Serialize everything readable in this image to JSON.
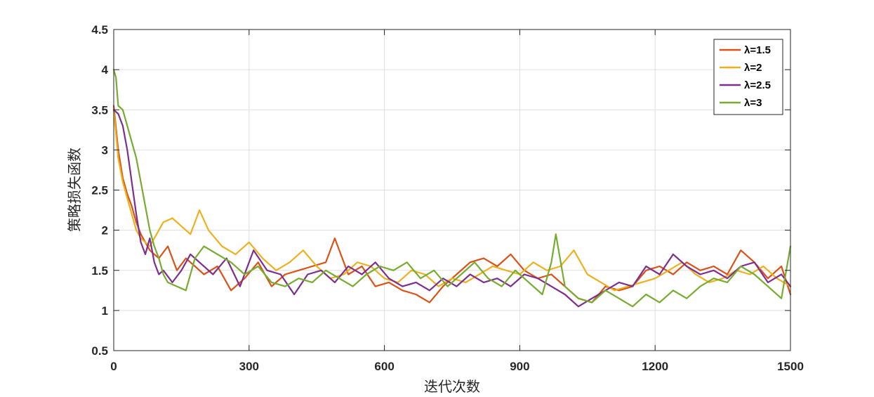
{
  "chart_data": {
    "type": "line",
    "title": "",
    "xlabel": "迭代次数",
    "ylabel": "策略损失函数",
    "xlim": [
      0,
      1500
    ],
    "ylim": [
      0.5,
      4.5
    ],
    "xticks": [
      0,
      300,
      600,
      900,
      1200,
      1500
    ],
    "yticks": [
      0.5,
      1,
      1.5,
      2,
      2.5,
      3,
      3.5,
      4,
      4.5
    ],
    "xtick_labels": [
      "0",
      "300",
      "600",
      "900",
      "1200",
      "1500"
    ],
    "ytick_labels": [
      "0.5",
      "1",
      "1.5",
      "2",
      "2.5",
      "3",
      "3.5",
      "4",
      "4.5"
    ],
    "grid": true,
    "legend_position": "top-right",
    "series": [
      {
        "name": "λ=1.5",
        "color": "#D95319",
        "x": [
          0,
          10,
          20,
          30,
          40,
          50,
          60,
          70,
          80,
          90,
          100,
          120,
          140,
          160,
          180,
          200,
          230,
          260,
          290,
          320,
          350,
          380,
          410,
          440,
          470,
          490,
          520,
          550,
          580,
          610,
          640,
          670,
          700,
          730,
          760,
          790,
          820,
          850,
          880,
          910,
          940,
          970,
          1000,
          1030,
          1060,
          1090,
          1120,
          1150,
          1180,
          1210,
          1240,
          1270,
          1300,
          1330,
          1360,
          1390,
          1420,
          1450,
          1480,
          1500
        ],
        "y": [
          3.55,
          3.0,
          2.65,
          2.45,
          2.3,
          2.1,
          1.95,
          1.85,
          1.75,
          1.7,
          1.65,
          1.8,
          1.5,
          1.65,
          1.55,
          1.45,
          1.55,
          1.25,
          1.4,
          1.6,
          1.3,
          1.45,
          1.5,
          1.55,
          1.6,
          1.9,
          1.45,
          1.55,
          1.3,
          1.35,
          1.25,
          1.2,
          1.1,
          1.3,
          1.45,
          1.6,
          1.65,
          1.55,
          1.7,
          1.5,
          1.4,
          1.45,
          1.3,
          1.15,
          1.1,
          1.3,
          1.25,
          1.3,
          1.5,
          1.55,
          1.45,
          1.6,
          1.5,
          1.55,
          1.45,
          1.75,
          1.6,
          1.4,
          1.55,
          1.2
        ]
      },
      {
        "name": "λ=2",
        "color": "#EDB120",
        "x": [
          0,
          10,
          20,
          30,
          40,
          50,
          60,
          70,
          80,
          90,
          110,
          130,
          150,
          170,
          190,
          210,
          240,
          270,
          300,
          330,
          360,
          390,
          420,
          450,
          480,
          510,
          540,
          570,
          600,
          630,
          660,
          690,
          720,
          750,
          780,
          810,
          840,
          870,
          900,
          930,
          960,
          990,
          1020,
          1050,
          1080,
          1110,
          1140,
          1170,
          1200,
          1230,
          1260,
          1290,
          1320,
          1350,
          1380,
          1410,
          1440,
          1470,
          1500
        ],
        "y": [
          3.5,
          2.9,
          2.6,
          2.4,
          2.2,
          2.0,
          1.9,
          1.85,
          1.8,
          1.9,
          2.1,
          2.15,
          2.05,
          1.95,
          2.25,
          2.0,
          1.8,
          1.7,
          1.85,
          1.65,
          1.5,
          1.6,
          1.75,
          1.55,
          1.4,
          1.45,
          1.6,
          1.55,
          1.4,
          1.35,
          1.5,
          1.45,
          1.3,
          1.4,
          1.35,
          1.45,
          1.55,
          1.5,
          1.45,
          1.6,
          1.5,
          1.55,
          1.75,
          1.45,
          1.35,
          1.25,
          1.3,
          1.35,
          1.4,
          1.5,
          1.6,
          1.45,
          1.35,
          1.4,
          1.5,
          1.45,
          1.55,
          1.4,
          1.3
        ]
      },
      {
        "name": "λ=2.5",
        "color": "#7E2F8E",
        "x": [
          0,
          10,
          20,
          30,
          40,
          50,
          60,
          70,
          80,
          90,
          100,
          110,
          130,
          150,
          170,
          190,
          220,
          250,
          280,
          310,
          340,
          370,
          400,
          430,
          460,
          490,
          520,
          550,
          580,
          610,
          640,
          670,
          700,
          730,
          760,
          790,
          820,
          850,
          880,
          910,
          940,
          970,
          1000,
          1030,
          1060,
          1090,
          1120,
          1150,
          1180,
          1210,
          1240,
          1270,
          1300,
          1330,
          1360,
          1390,
          1420,
          1450,
          1480,
          1500
        ],
        "y": [
          3.5,
          3.45,
          3.3,
          3.0,
          2.6,
          2.2,
          1.85,
          1.7,
          1.9,
          1.6,
          1.45,
          1.5,
          1.35,
          1.5,
          1.7,
          1.6,
          1.45,
          1.65,
          1.3,
          1.75,
          1.5,
          1.45,
          1.2,
          1.45,
          1.5,
          1.35,
          1.55,
          1.45,
          1.6,
          1.4,
          1.3,
          1.35,
          1.25,
          1.4,
          1.3,
          1.45,
          1.35,
          1.4,
          1.3,
          1.45,
          1.4,
          1.3,
          1.2,
          1.05,
          1.15,
          1.25,
          1.35,
          1.3,
          1.55,
          1.45,
          1.7,
          1.55,
          1.45,
          1.5,
          1.4,
          1.55,
          1.6,
          1.35,
          1.45,
          1.3
        ]
      },
      {
        "name": "λ=3",
        "color": "#77AC30",
        "x": [
          0,
          5,
          10,
          20,
          30,
          40,
          50,
          60,
          70,
          80,
          90,
          100,
          110,
          120,
          140,
          160,
          180,
          200,
          230,
          260,
          290,
          320,
          350,
          380,
          410,
          440,
          470,
          500,
          530,
          560,
          590,
          620,
          650,
          680,
          710,
          740,
          770,
          800,
          830,
          860,
          890,
          920,
          950,
          970,
          980,
          1000,
          1030,
          1060,
          1090,
          1120,
          1150,
          1180,
          1210,
          1240,
          1270,
          1300,
          1330,
          1360,
          1390,
          1420,
          1450,
          1480,
          1500
        ],
        "y": [
          4.0,
          3.9,
          3.55,
          3.5,
          3.3,
          3.1,
          2.9,
          2.6,
          2.3,
          2.0,
          1.8,
          1.65,
          1.45,
          1.35,
          1.3,
          1.25,
          1.65,
          1.8,
          1.7,
          1.6,
          1.45,
          1.55,
          1.35,
          1.3,
          1.4,
          1.35,
          1.5,
          1.4,
          1.3,
          1.45,
          1.55,
          1.5,
          1.6,
          1.4,
          1.5,
          1.3,
          1.45,
          1.6,
          1.4,
          1.3,
          1.5,
          1.35,
          1.2,
          1.6,
          1.95,
          1.3,
          1.15,
          1.1,
          1.25,
          1.15,
          1.05,
          1.2,
          1.1,
          1.25,
          1.15,
          1.3,
          1.4,
          1.35,
          1.55,
          1.45,
          1.3,
          1.15,
          1.8
        ]
      }
    ]
  }
}
